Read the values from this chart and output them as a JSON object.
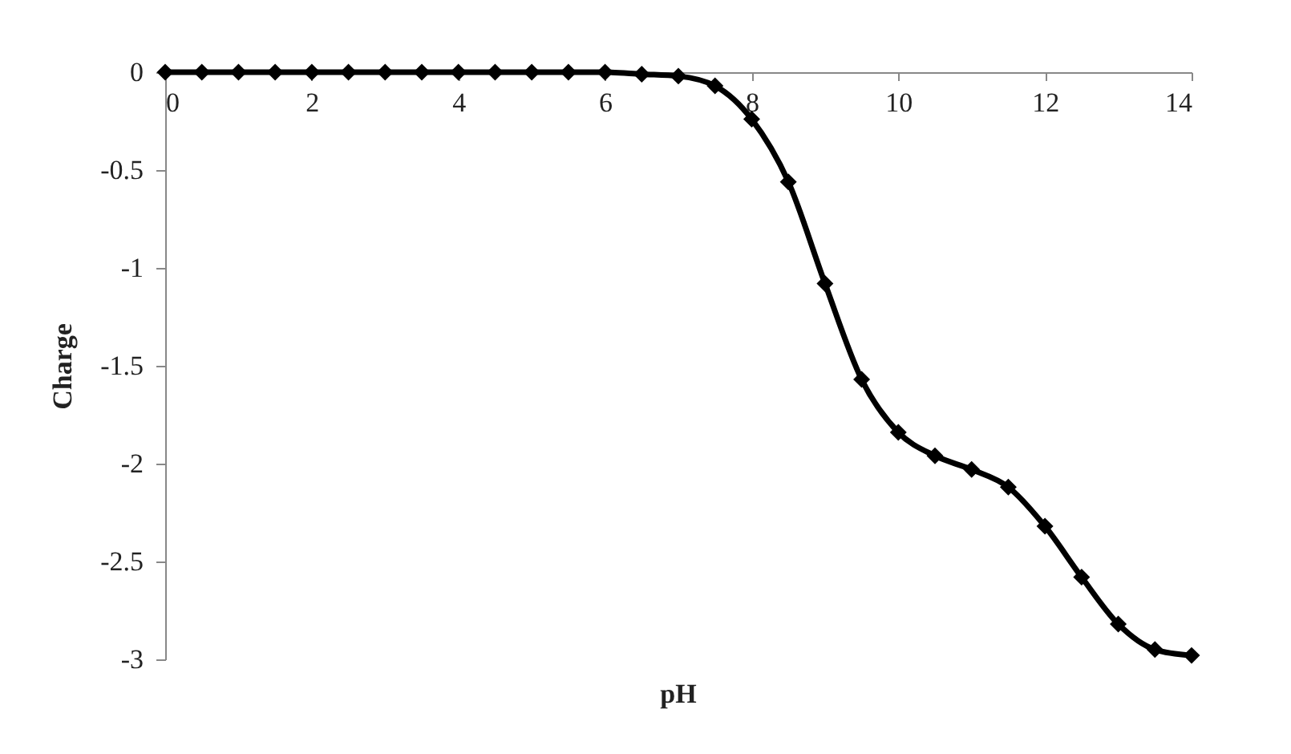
{
  "chart_data": {
    "type": "line",
    "xlabel": "pH",
    "ylabel": "Charge",
    "x": [
      0,
      0.5,
      1,
      1.5,
      2,
      2.5,
      3,
      3.5,
      4,
      4.5,
      5,
      5.5,
      6,
      6.5,
      7,
      7.5,
      8,
      8.5,
      9,
      9.5,
      10,
      10.5,
      11,
      11.5,
      12,
      12.5,
      13,
      13.5,
      14
    ],
    "series": [
      {
        "color": "#000000",
        "values": [
          0,
          0,
          0,
          0,
          0,
          0,
          0,
          0,
          0,
          0,
          0,
          0,
          0,
          -0.01,
          -0.02,
          -0.07,
          -0.24,
          -0.56,
          -1.08,
          -1.57,
          -1.84,
          -1.96,
          -2.03,
          -2.12,
          -2.32,
          -2.58,
          -2.82,
          -2.95,
          -2.98
        ]
      }
    ],
    "xlim": [
      0,
      14
    ],
    "xticks": [
      0,
      2,
      4,
      6,
      8,
      10,
      12,
      14
    ],
    "ylim": [
      -3,
      0
    ],
    "yticks": [
      -3,
      -2.5,
      -2,
      -1.5,
      -1,
      -0.5,
      0
    ],
    "grid": false,
    "marker": "diamond",
    "line_style": "solid"
  }
}
